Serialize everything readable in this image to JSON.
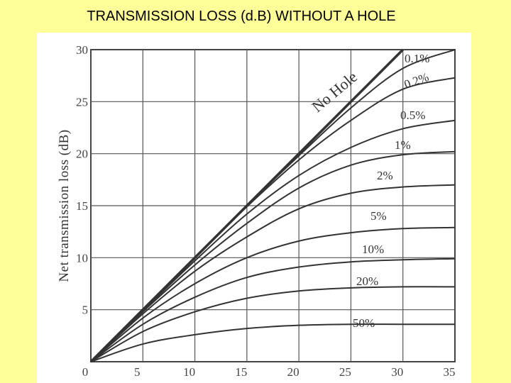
{
  "slide": {
    "title": "TRANSMISSION LOSS (d.B) WITHOUT A HOLE"
  },
  "chart_data": {
    "type": "line",
    "title": "TRANSMISSION LOSS (d.B) WITHOUT A HOLE",
    "xlabel": "",
    "ylabel": "Net transmission loss (dB)",
    "xlim": [
      0,
      35
    ],
    "ylim": [
      0,
      30
    ],
    "x_ticks": [
      "0",
      "5",
      "10",
      "15",
      "20",
      "25",
      "30",
      "35"
    ],
    "y_ticks": [
      "5",
      "10",
      "15",
      "20",
      "25",
      "30"
    ],
    "grid": true,
    "line_color": "#333333",
    "x": [
      0,
      5,
      10,
      15,
      20,
      25,
      30,
      35
    ],
    "series": [
      {
        "name": "No Hole",
        "label": "No Hole",
        "values": [
          0,
          5,
          10,
          15,
          20,
          25,
          30,
          null
        ]
      },
      {
        "name": "0.1%",
        "label": "0.1%",
        "values": [
          0,
          5,
          10,
          15,
          19.8,
          24.4,
          28.2,
          30
        ]
      },
      {
        "name": "0.2%",
        "label": "0.2%",
        "values": [
          0,
          5,
          10,
          14.9,
          19.4,
          23.2,
          26.2,
          27.3
        ]
      },
      {
        "name": "0.5%",
        "label": "0.5%",
        "values": [
          0,
          4.9,
          9.7,
          14.2,
          17.9,
          20.6,
          22.4,
          23.2
        ]
      },
      {
        "name": "1%",
        "label": "1%",
        "values": [
          0,
          4.8,
          9.3,
          13.3,
          16.7,
          18.9,
          19.9,
          20.2
        ]
      },
      {
        "name": "2%",
        "label": "2%",
        "values": [
          0,
          4.6,
          8.7,
          12.0,
          14.7,
          16.2,
          16.8,
          17.0
        ]
      },
      {
        "name": "5%",
        "label": "5%",
        "values": [
          0,
          4.2,
          7.5,
          10.0,
          11.6,
          12.4,
          12.8,
          12.9
        ]
      },
      {
        "name": "10%",
        "label": "10%",
        "values": [
          0,
          3.6,
          6.2,
          8.1,
          9.1,
          9.6,
          9.8,
          9.9
        ]
      },
      {
        "name": "20%",
        "label": "20%",
        "values": [
          0,
          2.9,
          4.8,
          6.1,
          6.8,
          7.1,
          7.2,
          7.2
        ]
      },
      {
        "name": "50%",
        "label": "50%",
        "values": [
          0,
          1.7,
          2.6,
          3.2,
          3.5,
          3.6,
          3.6,
          3.6
        ]
      }
    ]
  }
}
